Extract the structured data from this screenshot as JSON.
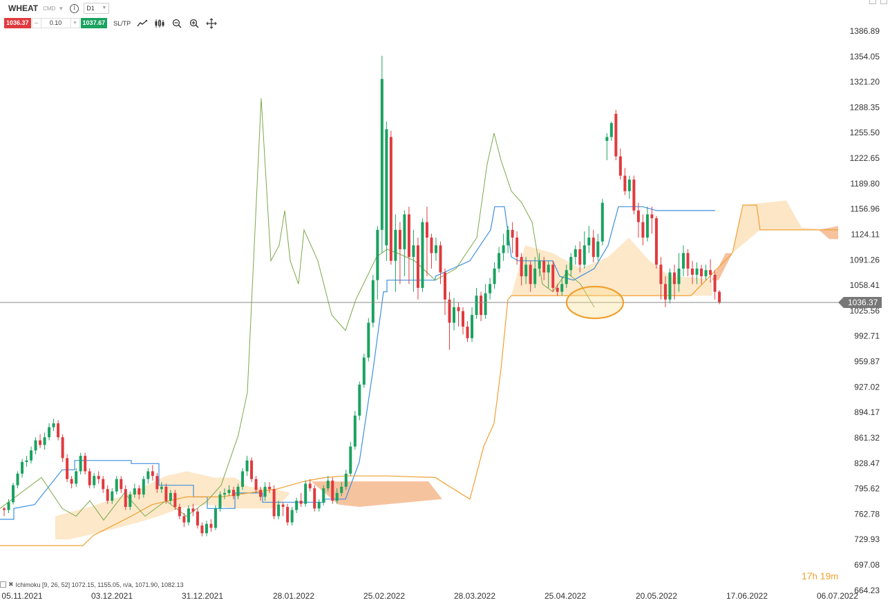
{
  "header": {
    "symbol": "WHEAT",
    "symbol_type": "CMD",
    "info_icon": "info-icon",
    "timeframe": "D1"
  },
  "trade": {
    "sell_price": "1036.37",
    "minus": "–",
    "quantity": "0.10",
    "plus": "+",
    "buy_price": "1037.67",
    "sltp_label": "SL/TP"
  },
  "tools": [
    "line-chart-icon",
    "candles-icon",
    "zoom-out-icon",
    "zoom-in-icon",
    "crosshair-icon"
  ],
  "indicator_legend": "Ichimoku [9, 26, 52] 1072.15, 1155.05, n/a, 1071.90, 1082.13",
  "countdown": {
    "hours": "17",
    "h": "h",
    "minutes": "19",
    "m": "m"
  },
  "current_price_tag": "1036.37",
  "colors": {
    "up": "#1aa260",
    "down": "#e03a3e",
    "tenkan": "#3d8fe0",
    "kijun": "#f0a030",
    "chikou": "#7aa84a",
    "cloud_bull": "#fde5c3",
    "cloud_bear": "#f5b98e",
    "highlight": "#f0a030"
  },
  "chart_data": {
    "type": "candlestick",
    "instrument": "WHEAT",
    "timeframe": "D1",
    "ylim": [
      664.23,
      1398
    ],
    "y_ticks": [
      "1386.89",
      "1354.05",
      "1321.20",
      "1288.35",
      "1255.50",
      "1222.65",
      "1189.80",
      "1156.96",
      "1124.11",
      "1091.26",
      "1058.41",
      "1025.56",
      "992.71",
      "959.87",
      "927.02",
      "894.17",
      "861.32",
      "828.47",
      "795.62",
      "762.78",
      "729.93",
      "697.08",
      "664.23"
    ],
    "x_ticks": [
      "05.11.2021",
      "03.12.2021",
      "31.12.2021",
      "28.01.2022",
      "25.02.2022",
      "28.03.2022",
      "25.04.2022",
      "20.05.2022",
      "17.06.2022",
      "06.07.2022"
    ],
    "current_price": 1036.37,
    "candles": [
      [
        770,
        768,
        772,
        760
      ],
      [
        768,
        778,
        782,
        764
      ],
      [
        778,
        800,
        803,
        775
      ],
      [
        800,
        815,
        818,
        796
      ],
      [
        815,
        830,
        834,
        810
      ],
      [
        830,
        832,
        838,
        824
      ],
      [
        832,
        845,
        850,
        828
      ],
      [
        845,
        858,
        862,
        840
      ],
      [
        858,
        852,
        866,
        848
      ],
      [
        852,
        862,
        868,
        846
      ],
      [
        862,
        875,
        880,
        858
      ],
      [
        875,
        880,
        886,
        870
      ],
      [
        880,
        862,
        884,
        858
      ],
      [
        862,
        835,
        866,
        830
      ],
      [
        835,
        808,
        840,
        804
      ],
      [
        808,
        802,
        812,
        796
      ],
      [
        802,
        818,
        822,
        798
      ],
      [
        818,
        838,
        842,
        814
      ],
      [
        838,
        818,
        842,
        814
      ],
      [
        818,
        800,
        822,
        796
      ],
      [
        800,
        812,
        816,
        796
      ],
      [
        812,
        808,
        818,
        802
      ],
      [
        808,
        795,
        812,
        790
      ],
      [
        795,
        780,
        800,
        776
      ],
      [
        780,
        792,
        796,
        776
      ],
      [
        792,
        808,
        812,
        788
      ],
      [
        808,
        795,
        812,
        790
      ],
      [
        795,
        772,
        800,
        768
      ],
      [
        772,
        788,
        792,
        768
      ],
      [
        788,
        796,
        802,
        784
      ],
      [
        796,
        788,
        800,
        782
      ],
      [
        788,
        808,
        812,
        784
      ],
      [
        808,
        818,
        822,
        802
      ],
      [
        818,
        812,
        826,
        806
      ],
      [
        812,
        795,
        816,
        790
      ],
      [
        795,
        798,
        804,
        790
      ],
      [
        798,
        780,
        802,
        776
      ],
      [
        780,
        790,
        794,
        776
      ],
      [
        790,
        772,
        794,
        768
      ],
      [
        772,
        760,
        776,
        756
      ],
      [
        760,
        752,
        764,
        746
      ],
      [
        752,
        770,
        774,
        748
      ],
      [
        770,
        766,
        776,
        760
      ],
      [
        766,
        748,
        770,
        744
      ],
      [
        748,
        738,
        752,
        734
      ],
      [
        738,
        750,
        754,
        734
      ],
      [
        750,
        745,
        756,
        740
      ],
      [
        745,
        770,
        774,
        742
      ],
      [
        770,
        788,
        792,
        766
      ],
      [
        788,
        790,
        796,
        782
      ],
      [
        790,
        794,
        800,
        786
      ],
      [
        794,
        786,
        798,
        782
      ],
      [
        786,
        798,
        802,
        782
      ],
      [
        798,
        818,
        822,
        794
      ],
      [
        818,
        832,
        838,
        812
      ],
      [
        832,
        808,
        836,
        804
      ],
      [
        808,
        794,
        812,
        790
      ],
      [
        794,
        785,
        798,
        780
      ],
      [
        785,
        798,
        804,
        780
      ],
      [
        798,
        795,
        804,
        790
      ],
      [
        795,
        760,
        800,
        756
      ],
      [
        760,
        775,
        780,
        756
      ],
      [
        775,
        772,
        778,
        760
      ],
      [
        772,
        752,
        776,
        748
      ],
      [
        752,
        768,
        772,
        748
      ],
      [
        768,
        780,
        784,
        764
      ],
      [
        780,
        776,
        790,
        772
      ],
      [
        776,
        802,
        806,
        772
      ],
      [
        802,
        796,
        808,
        792
      ],
      [
        796,
        770,
        800,
        766
      ],
      [
        770,
        778,
        782,
        766
      ],
      [
        778,
        796,
        800,
        774
      ],
      [
        796,
        806,
        812,
        792
      ],
      [
        806,
        780,
        810,
        776
      ],
      [
        780,
        790,
        796,
        776
      ],
      [
        790,
        798,
        804,
        786
      ],
      [
        798,
        815,
        820,
        794
      ],
      [
        815,
        850,
        856,
        812
      ],
      [
        850,
        890,
        896,
        846
      ],
      [
        890,
        930,
        934,
        884
      ],
      [
        930,
        965,
        970,
        926
      ],
      [
        965,
        1010,
        1016,
        960
      ],
      [
        1010,
        1065,
        1072,
        1004
      ],
      [
        1065,
        1130,
        1135,
        1040
      ],
      [
        1130,
        1325,
        1355,
        1100
      ],
      [
        1110,
        1260,
        1270,
        1090
      ],
      [
        1250,
        1090,
        1258,
        1085
      ],
      [
        1090,
        1130,
        1150,
        1050
      ],
      [
        1130,
        1105,
        1140,
        1060
      ],
      [
        1105,
        1150,
        1155,
        1070
      ],
      [
        1150,
        1095,
        1160,
        1060
      ],
      [
        1095,
        1110,
        1130,
        1050
      ],
      [
        1110,
        1055,
        1120,
        1040
      ],
      [
        1055,
        1140,
        1145,
        1050
      ],
      [
        1140,
        1120,
        1160,
        1070
      ],
      [
        1120,
        1100,
        1125,
        1080
      ],
      [
        1100,
        1110,
        1120,
        1090
      ],
      [
        1110,
        1075,
        1115,
        1060
      ],
      [
        1075,
        1040,
        1080,
        1020
      ],
      [
        1040,
        1010,
        1050,
        975
      ],
      [
        1010,
        1030,
        1042,
        1000
      ],
      [
        1030,
        1025,
        1036,
        1005
      ],
      [
        1025,
        1005,
        1030,
        995
      ],
      [
        1005,
        990,
        1012,
        985
      ],
      [
        990,
        1020,
        1030,
        985
      ],
      [
        1020,
        1045,
        1055,
        1015
      ],
      [
        1045,
        1020,
        1050,
        1012
      ],
      [
        1020,
        1048,
        1060,
        1015
      ],
      [
        1048,
        1060,
        1068,
        1040
      ],
      [
        1060,
        1080,
        1088,
        1054
      ],
      [
        1080,
        1100,
        1108,
        1075
      ],
      [
        1100,
        1110,
        1125,
        1090
      ],
      [
        1110,
        1130,
        1135,
        1100
      ],
      [
        1130,
        1120,
        1140,
        1100
      ],
      [
        1120,
        1095,
        1128,
        1085
      ],
      [
        1095,
        1070,
        1100,
        1058
      ],
      [
        1070,
        1085,
        1095,
        1060
      ],
      [
        1085,
        1060,
        1090,
        1050
      ],
      [
        1060,
        1080,
        1095,
        1055
      ],
      [
        1080,
        1090,
        1100,
        1070
      ],
      [
        1090,
        1075,
        1095,
        1065
      ],
      [
        1075,
        1085,
        1090,
        1055
      ],
      [
        1085,
        1055,
        1090,
        1050
      ],
      [
        1055,
        1050,
        1060,
        1045
      ],
      [
        1050,
        1060,
        1070,
        1045
      ],
      [
        1060,
        1078,
        1085,
        1055
      ],
      [
        1078,
        1095,
        1100,
        1070
      ],
      [
        1095,
        1105,
        1110,
        1085
      ],
      [
        1105,
        1085,
        1115,
        1075
      ],
      [
        1085,
        1110,
        1128,
        1080
      ],
      [
        1110,
        1120,
        1135,
        1100
      ],
      [
        1120,
        1095,
        1130,
        1088
      ],
      [
        1095,
        1115,
        1125,
        1090
      ],
      [
        1115,
        1165,
        1170,
        1110
      ],
      [
        1245,
        1250,
        1255,
        1220
      ],
      [
        1250,
        1268,
        1270,
        1245
      ],
      [
        1280,
        1225,
        1285,
        1220
      ],
      [
        1225,
        1200,
        1235,
        1195
      ],
      [
        1200,
        1180,
        1210,
        1175
      ],
      [
        1180,
        1195,
        1200,
        1170
      ],
      [
        1195,
        1155,
        1200,
        1150
      ],
      [
        1155,
        1140,
        1165,
        1120
      ],
      [
        1140,
        1120,
        1150,
        1110
      ],
      [
        1120,
        1150,
        1160,
        1115
      ],
      [
        1150,
        1145,
        1160,
        1125
      ],
      [
        1145,
        1085,
        1148,
        1080
      ],
      [
        1085,
        1060,
        1095,
        1040
      ],
      [
        1060,
        1040,
        1070,
        1030
      ],
      [
        1040,
        1075,
        1080,
        1035
      ],
      [
        1075,
        1060,
        1085,
        1040
      ],
      [
        1060,
        1080,
        1100,
        1050
      ],
      [
        1080,
        1100,
        1110,
        1070
      ],
      [
        1100,
        1080,
        1105,
        1070
      ],
      [
        1080,
        1072,
        1090,
        1060
      ],
      [
        1072,
        1080,
        1088,
        1060
      ],
      [
        1080,
        1070,
        1085,
        1060
      ],
      [
        1070,
        1078,
        1085,
        1065
      ],
      [
        1078,
        1072,
        1092,
        1062
      ],
      [
        1072,
        1050,
        1078,
        1040
      ],
      [
        1050,
        1036,
        1052,
        1034
      ]
    ],
    "tenkan_note": "Ichimoku Tenkan-sen (blue)",
    "kijun_note": "Ichimoku Kijun-sen (orange)",
    "chikou_note": "Ichimoku Chikou span (green)"
  }
}
